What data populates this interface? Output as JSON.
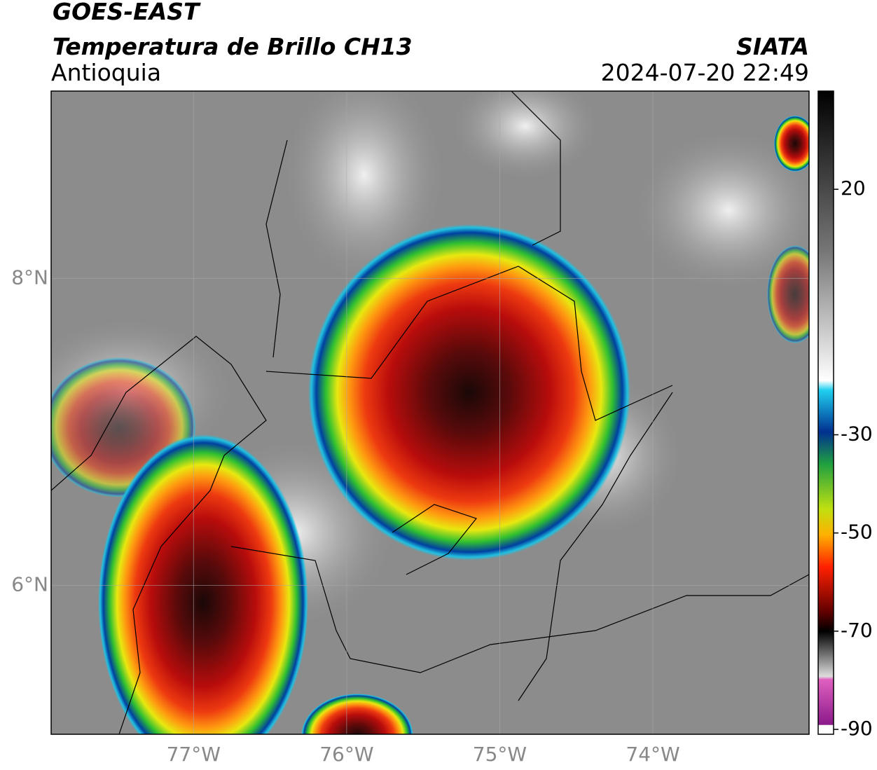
{
  "header": {
    "title": "GOES-EAST",
    "subtitle": "Temperatura de Brillo CH13",
    "region": "Antioquia",
    "source": "SIATA",
    "datetime": "2024-07-20 22:49"
  },
  "map": {
    "lonlim": [
      -77.93,
      -72.98
    ],
    "latlim": [
      5.03,
      9.22
    ],
    "lonticks": [
      {
        "value": -77,
        "label": "77°W"
      },
      {
        "value": -76,
        "label": "76°W"
      },
      {
        "value": -75,
        "label": "75°W"
      },
      {
        "value": -74,
        "label": "74°W"
      }
    ],
    "latticks": [
      {
        "value": 8,
        "label": "8°N"
      },
      {
        "value": 6,
        "label": "6°N"
      }
    ],
    "grid": true
  },
  "colorbar": {
    "lim": [
      -91,
      40
    ],
    "ticks": [
      20,
      -30,
      -50,
      -70,
      -90
    ]
  }
}
